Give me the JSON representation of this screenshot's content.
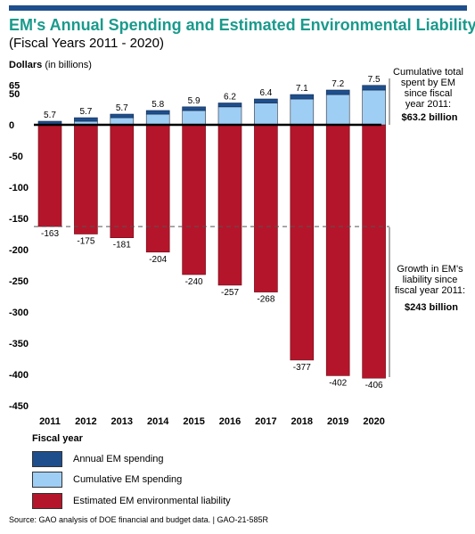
{
  "header": {
    "title": "EM's Annual Spending and Estimated Environmental Liability",
    "subtitle": "(Fiscal Years 2011 - 2020)"
  },
  "axis": {
    "ylabel_bold": "Dollars",
    "ylabel_rest": " (in billions)",
    "xlabel": "Fiscal year"
  },
  "annotations": {
    "spending_lines": [
      "Cumulative total",
      "spent by EM",
      "since fiscal",
      "year 2011:"
    ],
    "spending_total": "$63.2 billion",
    "liability_lines": [
      "Growth in EM's",
      "liability since",
      "fiscal year 2011:"
    ],
    "liability_total": "$243 billion"
  },
  "legend": {
    "annual": "Annual EM spending",
    "cumulative": "Cumulative EM spending",
    "liability": "Estimated EM environmental liability"
  },
  "colors": {
    "annual": "#1f4e8c",
    "cumulative": "#9fcef5",
    "liability": "#b5152b",
    "title": "#1a9a8c"
  },
  "source": "Source: GAO analysis of DOE financial and budget data.  |  GAO-21-585R",
  "chart_data": {
    "type": "bar",
    "categories": [
      "2011",
      "2012",
      "2013",
      "2014",
      "2015",
      "2016",
      "2017",
      "2018",
      "2019",
      "2020"
    ],
    "series": [
      {
        "name": "Annual EM spending",
        "values": [
          5.7,
          5.7,
          5.7,
          5.8,
          5.9,
          6.2,
          6.4,
          7.1,
          7.2,
          7.5
        ]
      },
      {
        "name": "Cumulative EM spending",
        "values": [
          0,
          5.7,
          11.4,
          17.1,
          22.9,
          28.8,
          35.0,
          41.4,
          48.5,
          55.7
        ]
      },
      {
        "name": "Estimated EM environmental liability",
        "values": [
          -163,
          -175,
          -181,
          -204,
          -240,
          -257,
          -268,
          -377,
          -402,
          -406
        ]
      }
    ],
    "annual_labels": [
      "5.7",
      "5.7",
      "5.7",
      "5.8",
      "5.9",
      "6.2",
      "6.4",
      "7.1",
      "7.2",
      "7.5"
    ],
    "liability_labels": [
      "-163",
      "-175",
      "-181",
      "-204",
      "-240",
      "-257",
      "-268",
      "-377",
      "-402",
      "-406"
    ],
    "yticks": [
      65,
      50,
      0,
      -50,
      -100,
      -150,
      -200,
      -250,
      -300,
      -350,
      -400,
      -450
    ],
    "ylim": [
      -450,
      65
    ],
    "reference_line": -163,
    "grid": false,
    "legend_position": "bottom"
  }
}
